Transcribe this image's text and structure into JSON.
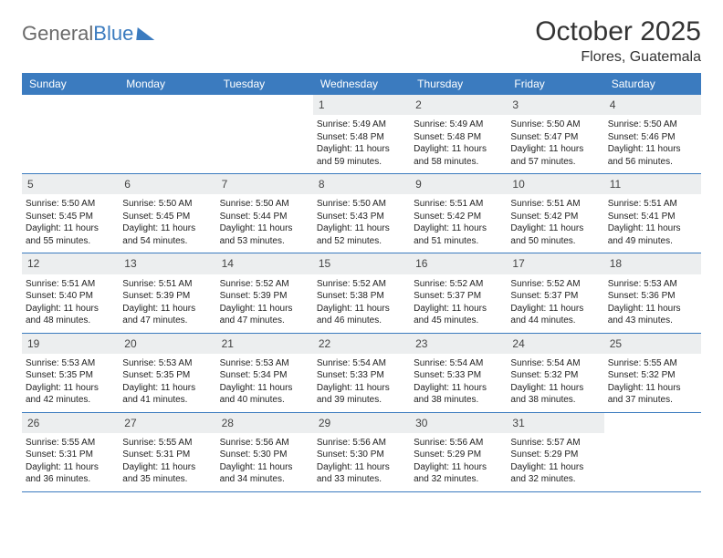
{
  "branding": {
    "word1": "General",
    "word2": "Blue"
  },
  "title": "October 2025",
  "location": "Flores, Guatemala",
  "colors": {
    "header_bg": "#3b7bbf",
    "header_text": "#ffffff",
    "daynum_bg": "#eceeef",
    "border": "#3b7bbf",
    "body_text": "#222222",
    "title_text": "#333333"
  },
  "day_names": [
    "Sunday",
    "Monday",
    "Tuesday",
    "Wednesday",
    "Thursday",
    "Friday",
    "Saturday"
  ],
  "weeks": [
    [
      {
        "empty": true
      },
      {
        "empty": true
      },
      {
        "empty": true
      },
      {
        "n": "1",
        "sr": "Sunrise: 5:49 AM",
        "ss": "Sunset: 5:48 PM",
        "dl": "Daylight: 11 hours and 59 minutes."
      },
      {
        "n": "2",
        "sr": "Sunrise: 5:49 AM",
        "ss": "Sunset: 5:48 PM",
        "dl": "Daylight: 11 hours and 58 minutes."
      },
      {
        "n": "3",
        "sr": "Sunrise: 5:50 AM",
        "ss": "Sunset: 5:47 PM",
        "dl": "Daylight: 11 hours and 57 minutes."
      },
      {
        "n": "4",
        "sr": "Sunrise: 5:50 AM",
        "ss": "Sunset: 5:46 PM",
        "dl": "Daylight: 11 hours and 56 minutes."
      }
    ],
    [
      {
        "n": "5",
        "sr": "Sunrise: 5:50 AM",
        "ss": "Sunset: 5:45 PM",
        "dl": "Daylight: 11 hours and 55 minutes."
      },
      {
        "n": "6",
        "sr": "Sunrise: 5:50 AM",
        "ss": "Sunset: 5:45 PM",
        "dl": "Daylight: 11 hours and 54 minutes."
      },
      {
        "n": "7",
        "sr": "Sunrise: 5:50 AM",
        "ss": "Sunset: 5:44 PM",
        "dl": "Daylight: 11 hours and 53 minutes."
      },
      {
        "n": "8",
        "sr": "Sunrise: 5:50 AM",
        "ss": "Sunset: 5:43 PM",
        "dl": "Daylight: 11 hours and 52 minutes."
      },
      {
        "n": "9",
        "sr": "Sunrise: 5:51 AM",
        "ss": "Sunset: 5:42 PM",
        "dl": "Daylight: 11 hours and 51 minutes."
      },
      {
        "n": "10",
        "sr": "Sunrise: 5:51 AM",
        "ss": "Sunset: 5:42 PM",
        "dl": "Daylight: 11 hours and 50 minutes."
      },
      {
        "n": "11",
        "sr": "Sunrise: 5:51 AM",
        "ss": "Sunset: 5:41 PM",
        "dl": "Daylight: 11 hours and 49 minutes."
      }
    ],
    [
      {
        "n": "12",
        "sr": "Sunrise: 5:51 AM",
        "ss": "Sunset: 5:40 PM",
        "dl": "Daylight: 11 hours and 48 minutes."
      },
      {
        "n": "13",
        "sr": "Sunrise: 5:51 AM",
        "ss": "Sunset: 5:39 PM",
        "dl": "Daylight: 11 hours and 47 minutes."
      },
      {
        "n": "14",
        "sr": "Sunrise: 5:52 AM",
        "ss": "Sunset: 5:39 PM",
        "dl": "Daylight: 11 hours and 47 minutes."
      },
      {
        "n": "15",
        "sr": "Sunrise: 5:52 AM",
        "ss": "Sunset: 5:38 PM",
        "dl": "Daylight: 11 hours and 46 minutes."
      },
      {
        "n": "16",
        "sr": "Sunrise: 5:52 AM",
        "ss": "Sunset: 5:37 PM",
        "dl": "Daylight: 11 hours and 45 minutes."
      },
      {
        "n": "17",
        "sr": "Sunrise: 5:52 AM",
        "ss": "Sunset: 5:37 PM",
        "dl": "Daylight: 11 hours and 44 minutes."
      },
      {
        "n": "18",
        "sr": "Sunrise: 5:53 AM",
        "ss": "Sunset: 5:36 PM",
        "dl": "Daylight: 11 hours and 43 minutes."
      }
    ],
    [
      {
        "n": "19",
        "sr": "Sunrise: 5:53 AM",
        "ss": "Sunset: 5:35 PM",
        "dl": "Daylight: 11 hours and 42 minutes."
      },
      {
        "n": "20",
        "sr": "Sunrise: 5:53 AM",
        "ss": "Sunset: 5:35 PM",
        "dl": "Daylight: 11 hours and 41 minutes."
      },
      {
        "n": "21",
        "sr": "Sunrise: 5:53 AM",
        "ss": "Sunset: 5:34 PM",
        "dl": "Daylight: 11 hours and 40 minutes."
      },
      {
        "n": "22",
        "sr": "Sunrise: 5:54 AM",
        "ss": "Sunset: 5:33 PM",
        "dl": "Daylight: 11 hours and 39 minutes."
      },
      {
        "n": "23",
        "sr": "Sunrise: 5:54 AM",
        "ss": "Sunset: 5:33 PM",
        "dl": "Daylight: 11 hours and 38 minutes."
      },
      {
        "n": "24",
        "sr": "Sunrise: 5:54 AM",
        "ss": "Sunset: 5:32 PM",
        "dl": "Daylight: 11 hours and 38 minutes."
      },
      {
        "n": "25",
        "sr": "Sunrise: 5:55 AM",
        "ss": "Sunset: 5:32 PM",
        "dl": "Daylight: 11 hours and 37 minutes."
      }
    ],
    [
      {
        "n": "26",
        "sr": "Sunrise: 5:55 AM",
        "ss": "Sunset: 5:31 PM",
        "dl": "Daylight: 11 hours and 36 minutes."
      },
      {
        "n": "27",
        "sr": "Sunrise: 5:55 AM",
        "ss": "Sunset: 5:31 PM",
        "dl": "Daylight: 11 hours and 35 minutes."
      },
      {
        "n": "28",
        "sr": "Sunrise: 5:56 AM",
        "ss": "Sunset: 5:30 PM",
        "dl": "Daylight: 11 hours and 34 minutes."
      },
      {
        "n": "29",
        "sr": "Sunrise: 5:56 AM",
        "ss": "Sunset: 5:30 PM",
        "dl": "Daylight: 11 hours and 33 minutes."
      },
      {
        "n": "30",
        "sr": "Sunrise: 5:56 AM",
        "ss": "Sunset: 5:29 PM",
        "dl": "Daylight: 11 hours and 32 minutes."
      },
      {
        "n": "31",
        "sr": "Sunrise: 5:57 AM",
        "ss": "Sunset: 5:29 PM",
        "dl": "Daylight: 11 hours and 32 minutes."
      },
      {
        "empty": true
      }
    ]
  ]
}
